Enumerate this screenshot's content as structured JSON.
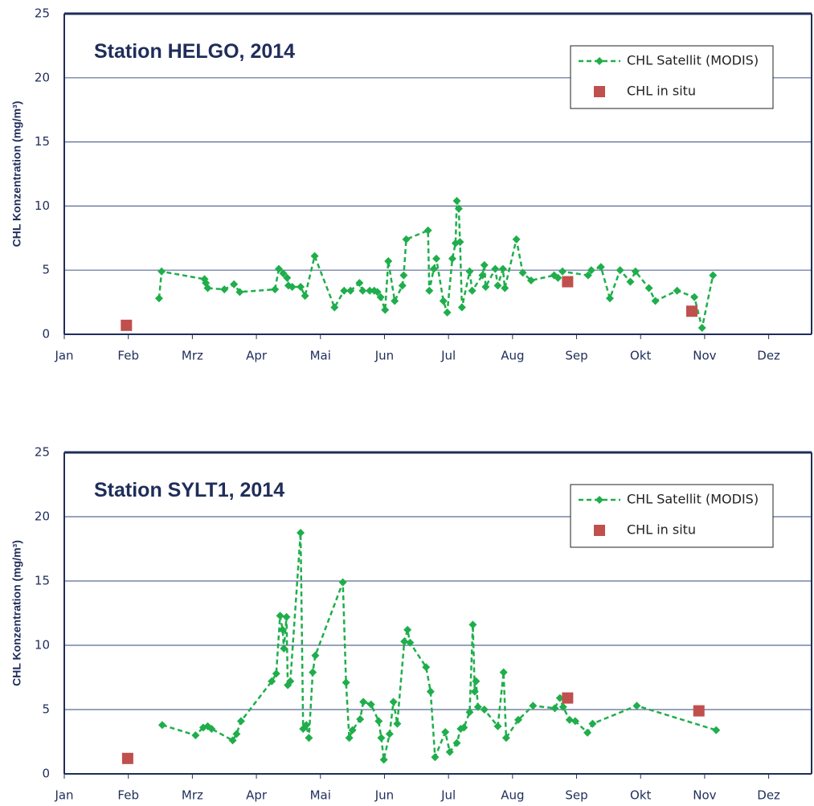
{
  "chart_data": [
    {
      "type": "line",
      "title": "Station HELGO, 2014",
      "ylabel": "CHL Konzentration (mg/m³)",
      "xlim": [
        0,
        11.67
      ],
      "ylim": [
        0,
        25
      ],
      "yticks": [
        0,
        5,
        10,
        15,
        20,
        25
      ],
      "grid": true,
      "legend": "upper right",
      "xticks": [
        {
          "value": 0,
          "label": "Jan"
        },
        {
          "value": 1,
          "label": "Feb"
        },
        {
          "value": 2,
          "label": "Mrz"
        },
        {
          "value": 3,
          "label": "Apr"
        },
        {
          "value": 4,
          "label": "Mai"
        },
        {
          "value": 5,
          "label": "Jun"
        },
        {
          "value": 6,
          "label": "Jul"
        },
        {
          "value": 7,
          "label": "Aug"
        },
        {
          "value": 8,
          "label": "Sep"
        },
        {
          "value": 9,
          "label": "Okt"
        },
        {
          "value": 10,
          "label": "Nov"
        },
        {
          "value": 11,
          "label": "Dez"
        }
      ],
      "series": [
        {
          "name": "CHL Satellit (MODIS)",
          "color": "#1fae4b",
          "marker": "diamond",
          "line": "dashed",
          "x": [
            1.48,
            1.52,
            2.19,
            2.21,
            2.24,
            2.5,
            2.65,
            2.74,
            3.29,
            3.35,
            3.42,
            3.48,
            3.5,
            3.56,
            3.69,
            3.76,
            3.91,
            4.22,
            4.37,
            4.47,
            4.61,
            4.66,
            4.77,
            4.84,
            4.89,
            4.94,
            5.01,
            5.06,
            5.16,
            5.28,
            5.3,
            5.34,
            5.68,
            5.7,
            5.77,
            5.81,
            5.92,
            5.98,
            6.06,
            6.11,
            6.13,
            6.16,
            6.18,
            6.21,
            6.33,
            6.37,
            6.53,
            6.56,
            6.58,
            6.73,
            6.77,
            6.85,
            6.88,
            7.06,
            7.16,
            7.29,
            7.65,
            7.71,
            7.78,
            8.18,
            8.23,
            8.38,
            8.52,
            8.68,
            8.84,
            8.92,
            9.13,
            9.23,
            9.57,
            9.84,
            9.96,
            10.13
          ],
          "values": [
            2.8,
            4.9,
            4.3,
            4.0,
            3.6,
            3.5,
            3.9,
            3.3,
            3.5,
            5.1,
            4.75,
            4.4,
            3.8,
            3.7,
            3.7,
            3.0,
            6.1,
            2.1,
            3.4,
            3.4,
            4.0,
            3.4,
            3.4,
            3.4,
            3.3,
            2.9,
            1.9,
            5.7,
            2.6,
            3.8,
            4.6,
            7.4,
            8.1,
            3.4,
            5.1,
            5.9,
            2.6,
            1.7,
            5.9,
            7.1,
            10.4,
            9.8,
            7.2,
            2.1,
            4.9,
            3.4,
            4.6,
            5.4,
            3.7,
            5.1,
            3.8,
            5.1,
            3.6,
            7.4,
            4.8,
            4.2,
            4.6,
            4.4,
            4.9,
            4.6,
            5.0,
            5.25,
            2.8,
            5.0,
            4.1,
            4.9,
            3.6,
            2.6,
            3.4,
            2.9,
            0.5,
            4.6
          ]
        },
        {
          "name": "CHL in situ",
          "color": "#c0504d",
          "marker": "square",
          "line": "none",
          "x": [
            0.97,
            7.86,
            9.8
          ],
          "values": [
            0.7,
            4.1,
            1.8
          ]
        }
      ]
    },
    {
      "type": "line",
      "title": "Station SYLT1, 2014",
      "ylabel": "CHL Konzentration (mg/m³)",
      "xlim": [
        0,
        11.67
      ],
      "ylim": [
        0,
        25
      ],
      "yticks": [
        0,
        5,
        10,
        15,
        20,
        25
      ],
      "grid": true,
      "legend": "upper right",
      "xticks": [
        {
          "value": 0,
          "label": "Jan"
        },
        {
          "value": 1,
          "label": "Feb"
        },
        {
          "value": 2,
          "label": "Mrz"
        },
        {
          "value": 3,
          "label": "Apr"
        },
        {
          "value": 4,
          "label": "Mai"
        },
        {
          "value": 5,
          "label": "Jun"
        },
        {
          "value": 6,
          "label": "Jul"
        },
        {
          "value": 7,
          "label": "Aug"
        },
        {
          "value": 8,
          "label": "Sep"
        },
        {
          "value": 9,
          "label": "Okt"
        },
        {
          "value": 10,
          "label": "Nov"
        },
        {
          "value": 11,
          "label": "Dez"
        }
      ],
      "series": [
        {
          "name": "CHL Satellit (MODIS)",
          "color": "#1fae4b",
          "marker": "diamond",
          "line": "dashed",
          "x": [
            1.53,
            2.05,
            2.17,
            2.24,
            2.3,
            2.63,
            2.69,
            2.76,
            3.24,
            3.31,
            3.37,
            3.41,
            3.43,
            3.47,
            3.49,
            3.53,
            3.69,
            3.73,
            3.78,
            3.82,
            3.88,
            3.92,
            4.35,
            4.4,
            4.45,
            4.5,
            4.62,
            4.67,
            4.79,
            4.91,
            4.95,
            4.99,
            5.08,
            5.14,
            5.2,
            5.31,
            5.36,
            5.4,
            5.65,
            5.72,
            5.79,
            5.95,
            6.02,
            6.13,
            6.19,
            6.24,
            6.33,
            6.38,
            6.41,
            6.43,
            6.46,
            6.56,
            6.77,
            6.86,
            6.9,
            7.09,
            7.32,
            7.66,
            7.74,
            7.79,
            7.89,
            7.98,
            8.17,
            8.25,
            8.94,
            10.18
          ],
          "values": [
            3.8,
            3.0,
            3.6,
            3.7,
            3.5,
            2.6,
            3.1,
            4.1,
            7.2,
            7.8,
            12.3,
            11.2,
            9.75,
            12.2,
            6.9,
            7.2,
            18.75,
            3.5,
            3.8,
            2.8,
            7.9,
            9.2,
            14.9,
            7.1,
            2.8,
            3.4,
            4.25,
            5.6,
            5.4,
            4.1,
            2.8,
            1.1,
            3.1,
            5.6,
            3.9,
            10.3,
            11.2,
            10.2,
            8.3,
            6.4,
            1.3,
            3.25,
            1.7,
            2.4,
            3.5,
            3.6,
            4.8,
            11.6,
            6.4,
            7.2,
            5.2,
            5.0,
            3.7,
            7.9,
            2.8,
            4.2,
            5.3,
            5.1,
            5.9,
            5.2,
            4.2,
            4.1,
            3.2,
            3.9,
            5.3,
            3.4
          ]
        },
        {
          "name": "CHL in situ",
          "color": "#c0504d",
          "marker": "square",
          "line": "none",
          "x": [
            0.99,
            7.86,
            9.91
          ],
          "values": [
            1.2,
            5.9,
            4.9
          ]
        }
      ]
    }
  ]
}
